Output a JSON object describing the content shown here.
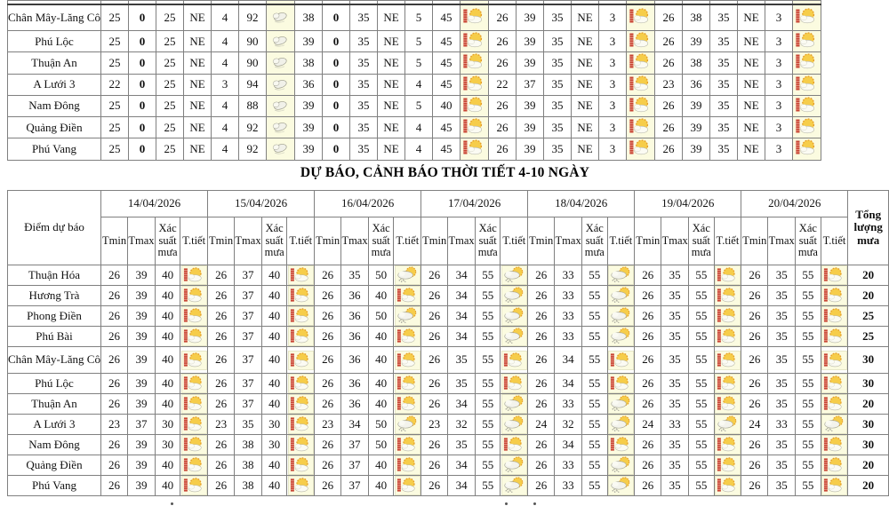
{
  "colors": {
    "tmin_green": "#008000",
    "tmax_red": "#dd2222",
    "wind_maroon": "#993333",
    "text_black": "#111111",
    "icon_bg": "#fbfbe0",
    "border_gray": "#808080"
  },
  "icons": {
    "A": "hot-sun-thermometer-icon",
    "B": "sun-behind-cloud-drizzle-icon",
    "C": "cloud-icon"
  },
  "top_table": {
    "rows": [
      {
        "name": "Chân Mây-Lăng Cô",
        "values": [
          "25",
          "0",
          "25",
          "NE",
          "4",
          "92",
          "C",
          "38",
          "0",
          "35",
          "NE",
          "5",
          "45",
          "A",
          "26",
          "39",
          "35",
          "NE",
          "3",
          "A",
          "26",
          "38",
          "35",
          "NE",
          "3",
          "A"
        ]
      },
      {
        "name": "Phú Lộc",
        "values": [
          "25",
          "0",
          "25",
          "NE",
          "4",
          "90",
          "C",
          "39",
          "0",
          "35",
          "NE",
          "5",
          "45",
          "A",
          "26",
          "39",
          "35",
          "NE",
          "3",
          "A",
          "26",
          "39",
          "35",
          "NE",
          "3",
          "A"
        ]
      },
      {
        "name": "Thuận An",
        "values": [
          "25",
          "0",
          "25",
          "NE",
          "4",
          "90",
          "C",
          "38",
          "0",
          "35",
          "NE",
          "5",
          "45",
          "A",
          "26",
          "39",
          "35",
          "NE",
          "3",
          "A",
          "26",
          "38",
          "35",
          "NE",
          "3",
          "A"
        ]
      },
      {
        "name": "A Lưới 3",
        "values": [
          "22",
          "0",
          "25",
          "NE",
          "3",
          "94",
          "C",
          "36",
          "0",
          "35",
          "NE",
          "4",
          "45",
          "A",
          "22",
          "37",
          "35",
          "NE",
          "3",
          "A",
          "23",
          "36",
          "35",
          "NE",
          "3",
          "A"
        ]
      },
      {
        "name": "Nam Đông",
        "values": [
          "25",
          "0",
          "25",
          "NE",
          "4",
          "88",
          "C",
          "39",
          "0",
          "35",
          "NE",
          "5",
          "40",
          "A",
          "26",
          "39",
          "35",
          "NE",
          "3",
          "A",
          "26",
          "39",
          "35",
          "NE",
          "3",
          "A"
        ]
      },
      {
        "name": "Quảng Điền",
        "values": [
          "25",
          "0",
          "25",
          "NE",
          "4",
          "92",
          "C",
          "39",
          "0",
          "35",
          "NE",
          "4",
          "45",
          "A",
          "26",
          "39",
          "35",
          "NE",
          "3",
          "A",
          "26",
          "39",
          "35",
          "NE",
          "3",
          "A"
        ]
      },
      {
        "name": "Phú Vang",
        "values": [
          "25",
          "0",
          "25",
          "NE",
          "4",
          "92",
          "C",
          "39",
          "0",
          "35",
          "NE",
          "4",
          "45",
          "A",
          "26",
          "39",
          "35",
          "NE",
          "3",
          "A",
          "26",
          "39",
          "35",
          "NE",
          "3",
          "A"
        ]
      }
    ]
  },
  "forecast_table": {
    "title": "DỰ BÁO, CẢNH BÁO THỜI TIẾT 4-10 NGÀY",
    "corner_header": "Điểm dự báo",
    "total_header": "Tổng lượng mưa",
    "dates": [
      "14/04/2026",
      "15/04/2026",
      "16/04/2026",
      "17/04/2026",
      "18/04/2026",
      "19/04/2026",
      "20/04/2026"
    ],
    "sub_headers": [
      "Tmin",
      "Tmax",
      "Xác suất mưa",
      "T.tiết"
    ],
    "rows": [
      {
        "name": "Thuận Hóa",
        "days": [
          [
            "26",
            "39",
            "40",
            "A"
          ],
          [
            "26",
            "37",
            "40",
            "A"
          ],
          [
            "26",
            "35",
            "50",
            "B"
          ],
          [
            "26",
            "34",
            "55",
            "B"
          ],
          [
            "26",
            "33",
            "55",
            "B"
          ],
          [
            "26",
            "35",
            "55",
            "A"
          ],
          [
            "26",
            "35",
            "55",
            "A"
          ]
        ],
        "total": "20"
      },
      {
        "name": "Hương Trà",
        "days": [
          [
            "26",
            "39",
            "40",
            "A"
          ],
          [
            "26",
            "37",
            "40",
            "A"
          ],
          [
            "26",
            "36",
            "40",
            "A"
          ],
          [
            "26",
            "34",
            "55",
            "B"
          ],
          [
            "26",
            "33",
            "55",
            "B"
          ],
          [
            "26",
            "35",
            "55",
            "A"
          ],
          [
            "26",
            "35",
            "55",
            "A"
          ]
        ],
        "total": "20"
      },
      {
        "name": "Phong Điền",
        "days": [
          [
            "26",
            "39",
            "40",
            "A"
          ],
          [
            "26",
            "37",
            "40",
            "A"
          ],
          [
            "26",
            "36",
            "50",
            "B"
          ],
          [
            "26",
            "34",
            "55",
            "B"
          ],
          [
            "26",
            "33",
            "55",
            "B"
          ],
          [
            "26",
            "35",
            "55",
            "A"
          ],
          [
            "26",
            "35",
            "55",
            "A"
          ]
        ],
        "total": "25"
      },
      {
        "name": "Phú Bài",
        "days": [
          [
            "26",
            "39",
            "40",
            "A"
          ],
          [
            "26",
            "37",
            "40",
            "A"
          ],
          [
            "26",
            "36",
            "40",
            "A"
          ],
          [
            "26",
            "34",
            "55",
            "B"
          ],
          [
            "26",
            "33",
            "55",
            "B"
          ],
          [
            "26",
            "35",
            "55",
            "A"
          ],
          [
            "26",
            "35",
            "55",
            "A"
          ]
        ],
        "total": "25"
      },
      {
        "name": "Chân Mây-Lăng Cô",
        "days": [
          [
            "26",
            "39",
            "40",
            "A"
          ],
          [
            "26",
            "37",
            "40",
            "A"
          ],
          [
            "26",
            "36",
            "40",
            "A"
          ],
          [
            "26",
            "35",
            "55",
            "A"
          ],
          [
            "26",
            "34",
            "55",
            "A"
          ],
          [
            "26",
            "35",
            "55",
            "A"
          ],
          [
            "26",
            "35",
            "55",
            "A"
          ]
        ],
        "total": "30"
      },
      {
        "name": "Phú Lộc",
        "days": [
          [
            "26",
            "39",
            "40",
            "A"
          ],
          [
            "26",
            "37",
            "40",
            "A"
          ],
          [
            "26",
            "36",
            "40",
            "A"
          ],
          [
            "26",
            "35",
            "55",
            "A"
          ],
          [
            "26",
            "34",
            "55",
            "A"
          ],
          [
            "26",
            "35",
            "55",
            "A"
          ],
          [
            "26",
            "35",
            "55",
            "A"
          ]
        ],
        "total": "30"
      },
      {
        "name": "Thuận An",
        "days": [
          [
            "26",
            "39",
            "40",
            "A"
          ],
          [
            "26",
            "37",
            "40",
            "A"
          ],
          [
            "26",
            "36",
            "40",
            "A"
          ],
          [
            "26",
            "34",
            "55",
            "B"
          ],
          [
            "26",
            "33",
            "55",
            "B"
          ],
          [
            "26",
            "35",
            "55",
            "A"
          ],
          [
            "26",
            "35",
            "55",
            "A"
          ]
        ],
        "total": "20"
      },
      {
        "name": "A Lưới 3",
        "days": [
          [
            "23",
            "37",
            "30",
            "A"
          ],
          [
            "23",
            "35",
            "30",
            "A"
          ],
          [
            "23",
            "34",
            "50",
            "B"
          ],
          [
            "23",
            "32",
            "55",
            "B"
          ],
          [
            "24",
            "32",
            "55",
            "B"
          ],
          [
            "24",
            "33",
            "55",
            "B"
          ],
          [
            "24",
            "33",
            "55",
            "B"
          ]
        ],
        "total": "30"
      },
      {
        "name": "Nam Đông",
        "days": [
          [
            "26",
            "39",
            "30",
            "A"
          ],
          [
            "26",
            "38",
            "30",
            "A"
          ],
          [
            "26",
            "37",
            "50",
            "A"
          ],
          [
            "26",
            "35",
            "55",
            "A"
          ],
          [
            "26",
            "34",
            "55",
            "A"
          ],
          [
            "26",
            "35",
            "55",
            "A"
          ],
          [
            "26",
            "35",
            "55",
            "A"
          ]
        ],
        "total": "30"
      },
      {
        "name": "Quảng Điền",
        "days": [
          [
            "26",
            "39",
            "40",
            "A"
          ],
          [
            "26",
            "38",
            "40",
            "A"
          ],
          [
            "26",
            "37",
            "40",
            "A"
          ],
          [
            "26",
            "34",
            "55",
            "B"
          ],
          [
            "26",
            "33",
            "55",
            "B"
          ],
          [
            "26",
            "35",
            "55",
            "A"
          ],
          [
            "26",
            "35",
            "55",
            "A"
          ]
        ],
        "total": "20"
      },
      {
        "name": "Phú Vang",
        "days": [
          [
            "26",
            "39",
            "40",
            "A"
          ],
          [
            "26",
            "38",
            "40",
            "A"
          ],
          [
            "26",
            "37",
            "40",
            "A"
          ],
          [
            "26",
            "34",
            "55",
            "B"
          ],
          [
            "26",
            "33",
            "55",
            "B"
          ],
          [
            "26",
            "35",
            "55",
            "A"
          ],
          [
            "26",
            "35",
            "55",
            "A"
          ]
        ],
        "total": "20"
      }
    ]
  }
}
